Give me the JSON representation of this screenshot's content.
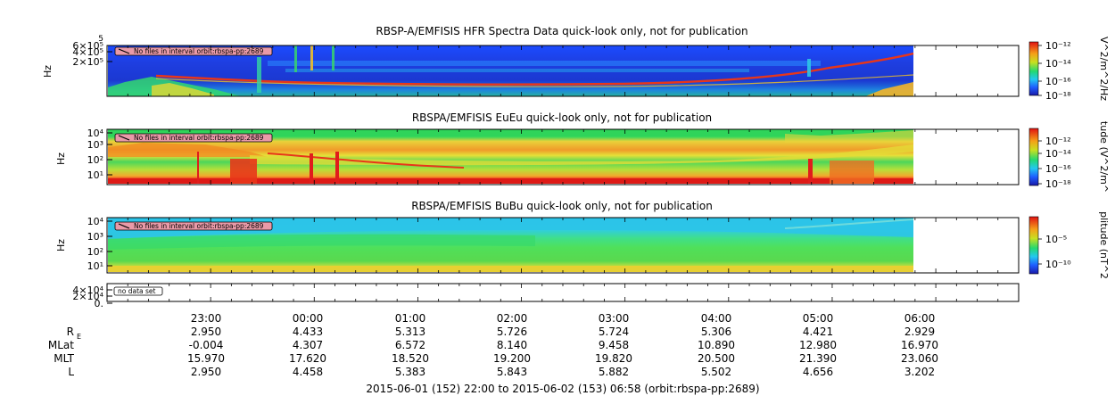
{
  "chart_data": [
    {
      "type": "heatmap",
      "title": "RBSP-A/EMFISIS  HFR Spectra Data quick-look only, not for publication",
      "ylabel": "Hz",
      "yticks": [
        "6×10⁵",
        "4×10⁵",
        "2×10⁵"
      ],
      "ytop_label": "5",
      "notice": "No files in interval orbit:rbspa-pp:2689",
      "colorbar_label": "V^2/m^2/Hz",
      "colorbar_ticks": [
        "10⁻¹²",
        "10⁻¹⁴",
        "10⁻¹⁶",
        "10⁻¹⁸"
      ]
    },
    {
      "type": "heatmap",
      "title": "RBSPA/EMFISIS  EuEu quick-look only, not for publication",
      "ylabel": "Hz",
      "yticks": [
        "10⁴",
        "10³",
        "10²",
        "10¹"
      ],
      "notice": "No files in interval orbit:rbspa-pp:2689",
      "colorbar_label": "tude (V^2/m^",
      "colorbar_ticks": [
        "10⁻¹²",
        "10⁻¹⁴",
        "10⁻¹⁶",
        "10⁻¹⁸"
      ]
    },
    {
      "type": "heatmap",
      "title": "RBSPA/EMFISIS  BuBu quick-look only, not for publication",
      "ylabel": "Hz",
      "yticks": [
        "10⁴",
        "10³",
        "10²",
        "10¹"
      ],
      "notice": "No files in interval orbit:rbspa-pp:2689",
      "colorbar_label": "plitude (nT^2",
      "colorbar_ticks": [
        "10⁻⁵",
        "10⁻¹⁰"
      ]
    },
    {
      "type": "line",
      "yticks": [
        "4×10⁴",
        "2×10⁴",
        "0."
      ],
      "notice": "no data set"
    }
  ],
  "ephemeris": {
    "times": [
      "23:00",
      "00:00",
      "01:00",
      "02:00",
      "03:00",
      "04:00",
      "05:00",
      "06:00"
    ],
    "rows": [
      {
        "label": "R",
        "sub": "E",
        "values": [
          "2.950",
          "4.433",
          "5.313",
          "5.726",
          "5.724",
          "5.306",
          "4.421",
          "2.929"
        ]
      },
      {
        "label": "MLat",
        "values": [
          "-0.004",
          "4.307",
          "6.572",
          "8.140",
          "9.458",
          "10.890",
          "12.980",
          "16.970"
        ]
      },
      {
        "label": "MLT",
        "values": [
          "15.970",
          "17.620",
          "18.520",
          "19.200",
          "19.820",
          "20.500",
          "21.390",
          "23.060"
        ]
      },
      {
        "label": "L",
        "values": [
          "2.950",
          "4.458",
          "5.383",
          "5.843",
          "5.882",
          "5.502",
          "4.656",
          "3.202"
        ]
      }
    ],
    "footer": "2015-06-01 (152) 22:00 to 2015-06-02 (153) 06:58 (orbit:rbspa-pp:2689)"
  },
  "colors": {
    "bg_blue": "#1e32d2",
    "green": "#22d36a",
    "red": "#e81e1e",
    "orange": "#f39a1e",
    "cyan": "#2ec6e6"
  }
}
